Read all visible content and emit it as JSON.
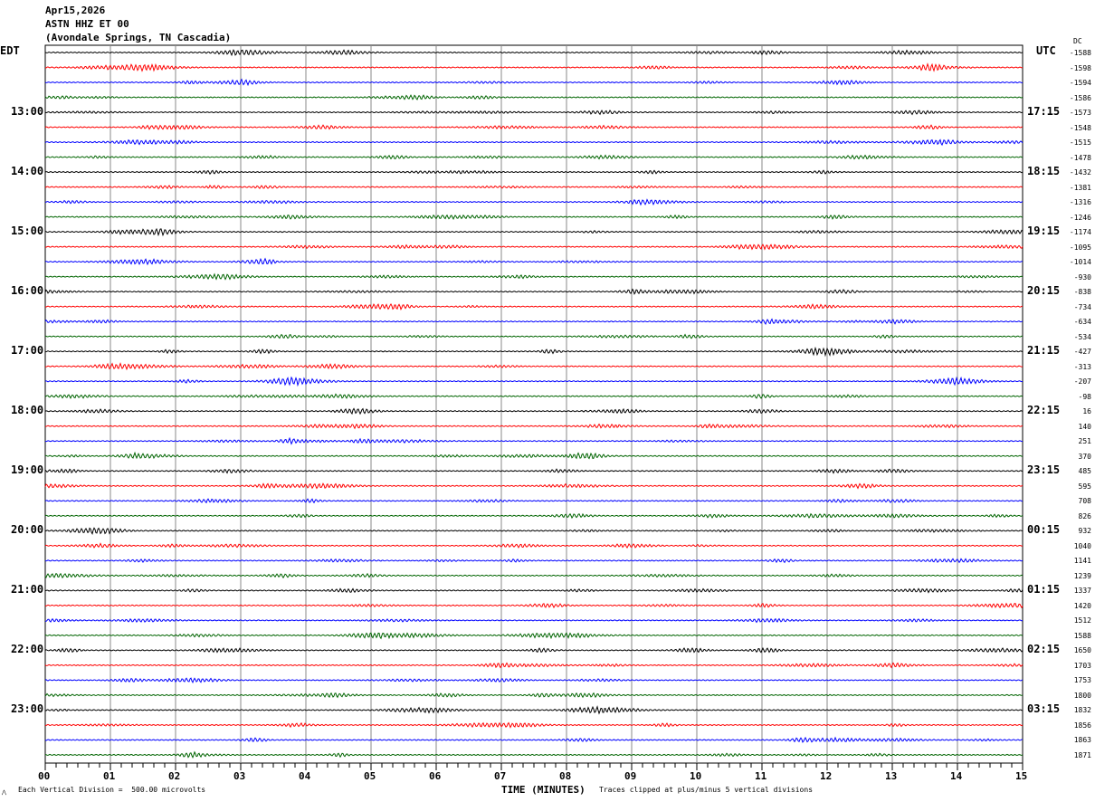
{
  "header": {
    "date": "Apr15,2026",
    "station": "ASTN HHZ ET 00",
    "location": "(Avondale Springs, TN Cascadia)"
  },
  "left_timezone": "EDT",
  "right_timezone": "UTC",
  "dc_label": "DC",
  "footer": {
    "scale_note": "Each Vertical Division =  500.00 microvolts",
    "xlabel": "TIME (MINUTES)",
    "clip_note": "Traces clipped at plus/minus 5 vertical divisions"
  },
  "chart_data": {
    "type": "line",
    "subtype": "helicorder",
    "xlabel": "TIME (MINUTES)",
    "xlim": [
      0,
      15
    ],
    "x_ticks": [
      "00",
      "01",
      "02",
      "03",
      "04",
      "05",
      "06",
      "07",
      "08",
      "09",
      "10",
      "11",
      "12",
      "13",
      "14",
      "15"
    ],
    "grid": true,
    "trace_colors": [
      "#000000",
      "#ff0000",
      "#0000ff",
      "#006400"
    ],
    "trace_minutes": 15,
    "left_hour_labels": [
      "13:00",
      "14:00",
      "15:00",
      "16:00",
      "17:00",
      "18:00",
      "19:00",
      "20:00",
      "21:00",
      "22:00",
      "23:00"
    ],
    "right_hour_labels": [
      "17:15",
      "18:15",
      "19:15",
      "20:15",
      "21:15",
      "22:15",
      "23:15",
      "00:15",
      "01:15",
      "02:15",
      "03:15"
    ],
    "dc_offsets": [
      "-1588",
      "-1598",
      "-1594",
      "-1586",
      "-1573",
      "-1548",
      "-1515",
      "-1478",
      "-1432",
      "-1381",
      "-1316",
      "-1246",
      "-1174",
      "-1095",
      "-1014",
      "-930",
      "-838",
      "-734",
      "-634",
      "-534",
      "-427",
      "-313",
      "-207",
      "-98",
      "16",
      "140",
      "251",
      "370",
      "485",
      "595",
      "708",
      "826",
      "932",
      "1040",
      "1141",
      "1239",
      "1337",
      "1420",
      "1512",
      "1588",
      "1650",
      "1703",
      "1753",
      "1800",
      "1832",
      "1856",
      "1863",
      "1871"
    ]
  }
}
